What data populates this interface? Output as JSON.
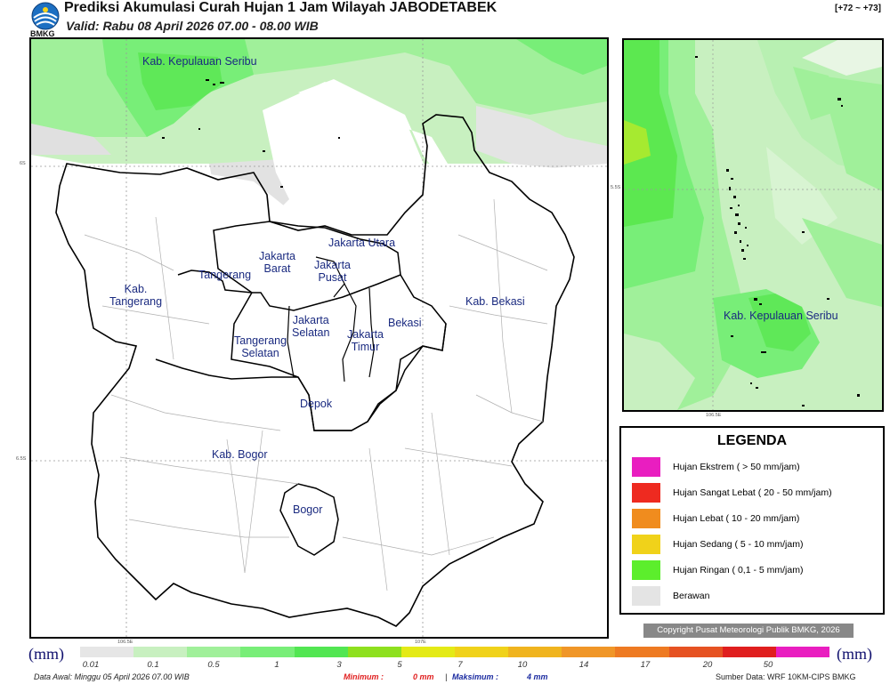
{
  "header": {
    "title": "Prediksi Akumulasi Curah Hujan 1 Jam Wilayah JABODETABEK",
    "valid": "Valid: Rabu 08 April 2026 07.00 - 08.00 WIB",
    "range": "[+72 ~ +73]",
    "logo_text": "BMKG"
  },
  "main_map": {
    "labels": [
      {
        "text": "Kab. Kepulauan Seribu"
      },
      {
        "text": "Jakarta Utara"
      },
      {
        "text": "Jakarta\nBarat"
      },
      {
        "text": "Jakarta\nPusat"
      },
      {
        "text": "Tangerang"
      },
      {
        "text": "Kab.\nTangerang"
      },
      {
        "text": "Jakarta\nSelatan"
      },
      {
        "text": "Jakarta\nTimur"
      },
      {
        "text": "Bekasi"
      },
      {
        "text": "Kab. Bekasi"
      },
      {
        "text": "Tangerang\nSelatan"
      },
      {
        "text": "Depok"
      },
      {
        "text": "Kab. Bogor"
      },
      {
        "text": "Bogor"
      }
    ],
    "lat_ticks": [
      "6S",
      "6.5S"
    ],
    "lon_ticks": [
      "106.5E",
      "107E"
    ]
  },
  "inset_map": {
    "label": "Kab. Kepulauan Seribu",
    "lat_tick": "5.5S",
    "lon_tick": "106.5E"
  },
  "legend": {
    "title": "LEGENDA",
    "items": [
      {
        "label": "Hujan Ekstrem ( > 50 mm/jam)",
        "color": "#e91ec0"
      },
      {
        "label": "Hujan Sangat Lebat ( 20 - 50 mm/jam)",
        "color": "#ee2a20"
      },
      {
        "label": "Hujan Lebat ( 10 - 20 mm/jam)",
        "color": "#f08c1e"
      },
      {
        "label": "Hujan Sedang ( 5 - 10 mm/jam)",
        "color": "#f0d21a"
      },
      {
        "label": "Hujan Ringan ( 0,1 - 5 mm/jam)",
        "color": "#5cee2c"
      },
      {
        "label": "Berawan",
        "color": "#e4e4e4"
      }
    ]
  },
  "copyright": "Copyright Pusat Meteorologi Publik BMKG, 2026",
  "colorbar": {
    "unit": "(mm)",
    "colors": [
      "#e6e6e6",
      "#c8f0c0",
      "#a0f09a",
      "#78ee78",
      "#52e652",
      "#8ee01e",
      "#e4ea16",
      "#f0d21a",
      "#f0b41e",
      "#f09628",
      "#ee7a22",
      "#e65222",
      "#e01e1e",
      "#e91ec0"
    ],
    "ticks": [
      "0.01",
      "0.1",
      "0.5",
      "1",
      "3",
      "5",
      "7",
      "10",
      "14",
      "17",
      "20",
      "50"
    ]
  },
  "footer": {
    "data_awal": "Data Awal: Minggu 05 April 2026 07.00 WIB",
    "minimum_label": "Minimum :",
    "minimum_value": "0 mm",
    "separator": "|",
    "maksimum_label": "Maksimum :",
    "maksimum_value": "4 mm",
    "source": "Sumber Data: WRF 10KM-CIPS BMKG"
  }
}
